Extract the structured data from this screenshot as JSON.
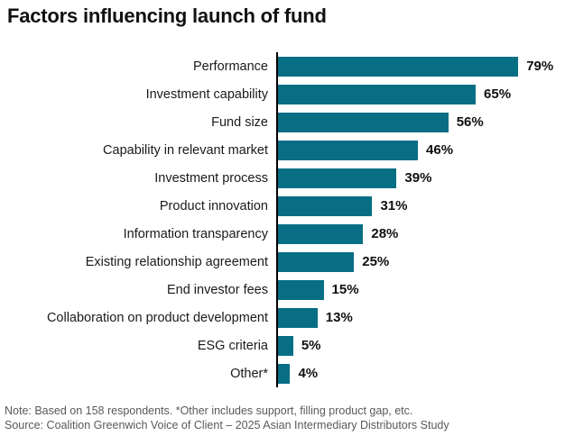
{
  "title": "Factors influencing launch of fund",
  "chart_data": {
    "type": "bar",
    "orientation": "horizontal",
    "title": "Factors influencing launch of fund",
    "categories": [
      "Performance",
      "Investment capability",
      "Fund size",
      "Capability in relevant market",
      "Investment process",
      "Product innovation",
      "Information transparency",
      "Existing relationship agreement",
      "End investor fees",
      "Collaboration on product development",
      "ESG criteria",
      "Other*"
    ],
    "values": [
      79,
      65,
      56,
      46,
      39,
      31,
      28,
      25,
      15,
      13,
      5,
      4
    ],
    "value_labels": [
      "79%",
      "65%",
      "56%",
      "46%",
      "39%",
      "31%",
      "28%",
      "25%",
      "15%",
      "13%",
      "5%",
      "4%"
    ],
    "value_suffix": "%",
    "xlim": [
      0,
      85
    ],
    "grid": false,
    "legend": false,
    "bar_color": "#076e84",
    "axis_line_color": "#000000"
  },
  "footer": {
    "note": "Note: Based on 158 respondents. *Other includes support, filling product gap, etc.",
    "source": "Source: Coalition Greenwich Voice of Client – 2025 Asian Intermediary Distributors Study"
  }
}
